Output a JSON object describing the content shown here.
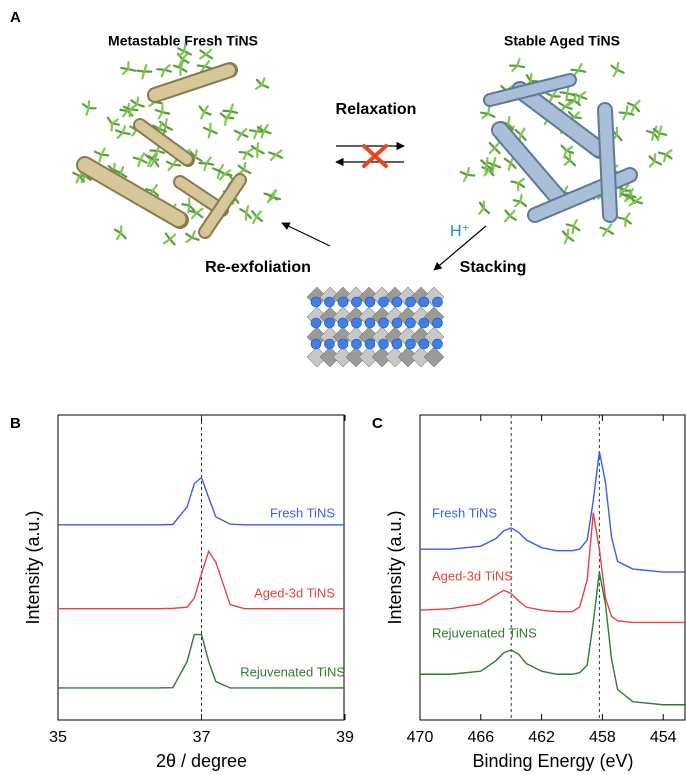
{
  "panel_a": {
    "label": "A",
    "fresh_title": "Metastable Fresh TiNS",
    "aged_title": "Stable Aged TiNS",
    "relaxation": "Relaxation",
    "proton": "H⁺",
    "stacking": "Stacking",
    "reexfoliation": "Re-exfoliation"
  },
  "chart_data": [
    {
      "type": "line",
      "label": "B",
      "xlabel": "2θ / degree",
      "ylabel": "Intensity (a.u.)",
      "xlim": [
        35,
        39
      ],
      "xticks": [
        35,
        37,
        39
      ],
      "ylim": [
        0,
        10
      ],
      "reference_lines": [
        37
      ],
      "x": [
        35,
        35.5,
        36,
        36.4,
        36.6,
        36.8,
        36.9,
        37,
        37.1,
        37.2,
        37.4,
        37.6,
        38,
        38.5,
        39
      ],
      "series": [
        {
          "name": "Fresh TiNS",
          "color": "#3b5ee8",
          "values": [
            6.4,
            6.4,
            6.4,
            6.4,
            6.41,
            6.99,
            7.75,
            7.95,
            7.29,
            6.66,
            6.42,
            6.4,
            6.4,
            6.4,
            6.4
          ]
        },
        {
          "name": "Aged-3d TiNS",
          "color": "#e8433b",
          "values": [
            3.65,
            3.65,
            3.65,
            3.65,
            3.66,
            3.7,
            4.0,
            4.8,
            5.53,
            5.17,
            3.78,
            3.65,
            3.65,
            3.65,
            3.65
          ]
        },
        {
          "name": "Rejuvenated TiNS",
          "color": "#2e7d2e",
          "values": [
            1.05,
            1.05,
            1.05,
            1.05,
            1.06,
            1.92,
            2.8,
            2.8,
            1.92,
            1.26,
            1.05,
            1.05,
            1.05,
            1.05,
            1.05
          ]
        }
      ]
    },
    {
      "type": "line",
      "label": "C",
      "xlabel": "Binding Energy (eV)",
      "ylabel": "Intensity (a.u.)",
      "xlim": [
        470,
        452.5
      ],
      "xticks": [
        470,
        466,
        462,
        458,
        454
      ],
      "ylim": [
        0,
        10
      ],
      "reference_lines": [
        464,
        458.2
      ],
      "x": [
        470,
        468,
        466,
        465,
        464.5,
        464,
        463.5,
        463,
        462,
        461,
        460,
        459.5,
        459,
        458.6,
        458.2,
        457.8,
        457.4,
        457,
        456,
        454,
        452.5
      ],
      "series": [
        {
          "name": "Fresh TiNS",
          "color": "#3b5ee8",
          "values": [
            5.6,
            5.6,
            5.7,
            5.95,
            6.2,
            6.3,
            6.15,
            5.9,
            5.65,
            5.55,
            5.55,
            5.6,
            5.9,
            7.2,
            8.8,
            7.8,
            6.0,
            5.2,
            4.95,
            4.85,
            4.85
          ]
        },
        {
          "name": "Aged-3d TiNS",
          "color": "#e8433b",
          "values": [
            3.6,
            3.65,
            3.8,
            4.1,
            4.25,
            4.15,
            3.9,
            3.7,
            3.6,
            3.55,
            3.55,
            3.7,
            4.6,
            6.8,
            5.6,
            4.0,
            3.4,
            3.25,
            3.2,
            3.2,
            3.2
          ]
        },
        {
          "name": "Rejuvenated TiNS",
          "color": "#2e7d2e",
          "values": [
            1.5,
            1.5,
            1.6,
            1.95,
            2.2,
            2.3,
            2.15,
            1.85,
            1.6,
            1.5,
            1.5,
            1.55,
            1.8,
            3.2,
            4.85,
            3.8,
            2.0,
            1.0,
            0.6,
            0.5,
            0.5
          ]
        }
      ]
    }
  ]
}
